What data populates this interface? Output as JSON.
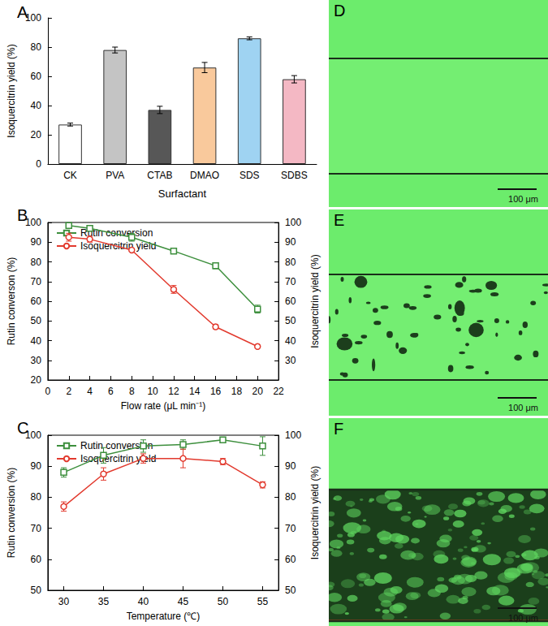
{
  "chart_data": [
    {
      "type": "bar",
      "title": "A",
      "x_label": "Surfactant",
      "y_label": "Isoquercitrin yield (%)",
      "categories": [
        "CK",
        "PVA",
        "CTAB",
        "DMAO",
        "SDS",
        "SDBS"
      ],
      "values": [
        27,
        78,
        37,
        66,
        86,
        58
      ],
      "errors": [
        1,
        2,
        2.5,
        3.5,
        1,
        2.5
      ],
      "colors": [
        "#ffffff",
        "#c4c4c4",
        "#575757",
        "#f9c99c",
        "#9fd3f2",
        "#f4b8c4"
      ],
      "ylim": [
        0,
        100
      ],
      "yticks": [
        0,
        20,
        40,
        60,
        80,
        100
      ],
      "grid": false
    },
    {
      "type": "line",
      "title": "B",
      "x_label": "Flow rate (μL min⁻¹)",
      "y_label": "Rutin converson (%)",
      "y2_label": "Isoquercitrin yield (%)",
      "x": [
        2,
        4,
        8,
        12,
        16,
        20
      ],
      "xlim": [
        0,
        22
      ],
      "xticks": [
        0,
        2,
        4,
        6,
        8,
        10,
        12,
        14,
        16,
        18,
        20,
        22
      ],
      "ylim": [
        20,
        100
      ],
      "yticks": [
        20,
        30,
        40,
        50,
        60,
        70,
        80,
        90,
        100
      ],
      "y2lim": [
        20,
        100
      ],
      "y2ticks": [
        30,
        40,
        50,
        60,
        70,
        80,
        90,
        100
      ],
      "legend": "upper left",
      "grid": false,
      "series": [
        {
          "name": "Rutin conversion",
          "color": "#3d8f3d",
          "marker": "square",
          "values": [
            98.5,
            97,
            92.5,
            85.5,
            78,
            56
          ],
          "errors": [
            1,
            0.5,
            2,
            0.5,
            1.5,
            2
          ]
        },
        {
          "name": "Isoquercitrin yield",
          "color": "#e23a2e",
          "marker": "circle",
          "axis": "y2",
          "values": [
            92.5,
            91.5,
            86,
            66,
            47,
            37
          ],
          "errors": [
            2,
            1.5,
            0.5,
            2,
            1,
            0.5
          ]
        }
      ]
    },
    {
      "type": "line",
      "title": "C",
      "x_label": "Temperature (℃)",
      "y_label": "Rutin conversion (%)",
      "y2_label": "Isoquercitrin yield (%)",
      "x": [
        30,
        35,
        40,
        45,
        50,
        55
      ],
      "xlim": [
        28,
        57
      ],
      "xticks": [
        30,
        35,
        40,
        45,
        50,
        55
      ],
      "ylim": [
        50,
        100
      ],
      "yticks": [
        50,
        60,
        70,
        80,
        90,
        100
      ],
      "y2lim": [
        50,
        100
      ],
      "y2ticks": [
        50,
        60,
        70,
        80,
        90,
        100
      ],
      "legend": "upper left",
      "grid": false,
      "series": [
        {
          "name": "Rutin conversion",
          "color": "#3d8f3d",
          "marker": "square",
          "values": [
            88,
            93.5,
            96.5,
            97,
            98.5,
            96.5
          ],
          "errors": [
            1.5,
            2.5,
            2,
            1.5,
            0.8,
            3
          ]
        },
        {
          "name": "Isoquercitrin yield",
          "color": "#e23a2e",
          "marker": "circle",
          "axis": "y2",
          "values": [
            77,
            87.5,
            92.5,
            92.5,
            91.5,
            84
          ],
          "errors": [
            1.5,
            2,
            1.5,
            3,
            1,
            1
          ]
        }
      ]
    }
  ],
  "images": [
    {
      "label": "D",
      "scale_bar": "100 μm"
    },
    {
      "label": "E",
      "scale_bar": "100 μm"
    },
    {
      "label": "F",
      "scale_bar": "100 μm"
    }
  ]
}
